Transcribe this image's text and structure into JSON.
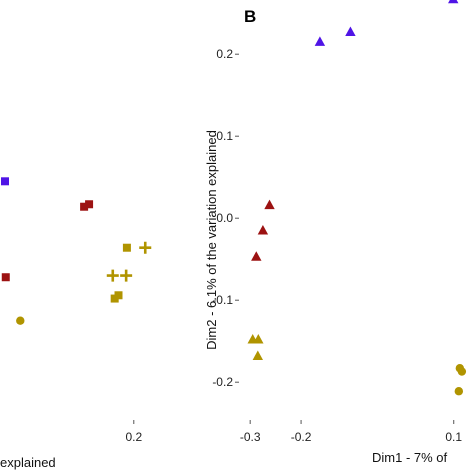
{
  "colors": {
    "blue": "#4f14e6",
    "red": "#9c1212",
    "gold": "#b09400",
    "tick": "#555555"
  },
  "chart_data": [
    {
      "type": "scatter",
      "panel": "left-partial",
      "xlabel": "explained",
      "xticks": [
        {
          "value": 0.2,
          "label": "0.2"
        }
      ],
      "xlim": [
        -0.137,
        0.334
      ],
      "ylim": [
        -0.24,
        0.26
      ],
      "series": [
        {
          "color": "blue",
          "marker": "square",
          "points": [
            [
              -0.137,
              0.045
            ]
          ]
        },
        {
          "color": "red",
          "marker": "square",
          "points": [
            [
              0.07,
              0.014
            ],
            [
              0.083,
              0.017
            ],
            [
              -0.135,
              -0.072
            ]
          ]
        },
        {
          "color": "gold",
          "marker": "square",
          "points": [
            [
              0.182,
              -0.036
            ],
            [
              0.15,
              -0.098
            ],
            [
              0.16,
              -0.094
            ]
          ]
        },
        {
          "color": "gold",
          "marker": "plus",
          "points": [
            [
              0.23,
              -0.036
            ],
            [
              0.145,
              -0.07
            ],
            [
              0.18,
              -0.07
            ]
          ]
        },
        {
          "color": "gold",
          "marker": "circle",
          "points": [
            [
              -0.097,
              -0.125
            ]
          ]
        }
      ]
    },
    {
      "type": "scatter",
      "panel": "B",
      "panel_label": "B",
      "xlabel": "Dim1 - 7% of",
      "ylabel": "Dim2 - 6.1% of the variation explained",
      "xticks": [
        {
          "value": -0.3,
          "label": "-0.3"
        },
        {
          "value": -0.2,
          "label": "-0.2"
        },
        {
          "value": 0.1,
          "label": "0.1"
        }
      ],
      "yticks": [
        {
          "value": 0.2,
          "label": "0.2"
        },
        {
          "value": 0.1,
          "label": "0.1"
        },
        {
          "value": 0.0,
          "label": "0.0"
        },
        {
          "value": -0.1,
          "label": "-0.1"
        },
        {
          "value": -0.2,
          "label": "-0.2"
        }
      ],
      "xlim": [
        -0.32,
        0.13
      ],
      "ylim": [
        -0.24,
        0.26
      ],
      "series": [
        {
          "color": "blue",
          "marker": "triangle",
          "points": [
            [
              0.099,
              0.267
            ],
            [
              -0.103,
              0.227
            ],
            [
              -0.163,
              0.215
            ]
          ]
        },
        {
          "color": "red",
          "marker": "triangle",
          "points": [
            [
              -0.262,
              0.016
            ],
            [
              -0.275,
              -0.015
            ],
            [
              -0.288,
              -0.047
            ]
          ]
        },
        {
          "color": "gold",
          "marker": "triangle",
          "points": [
            [
              -0.295,
              -0.148
            ],
            [
              -0.284,
              -0.148
            ],
            [
              -0.285,
              -0.168
            ]
          ]
        },
        {
          "color": "gold",
          "marker": "circle",
          "points": [
            [
              0.112,
              -0.183
            ],
            [
              0.116,
              -0.187
            ],
            [
              0.11,
              -0.211
            ]
          ]
        }
      ]
    }
  ]
}
